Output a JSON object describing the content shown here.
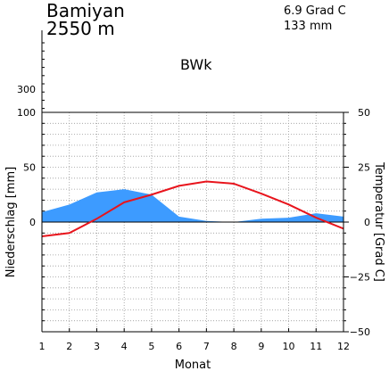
{
  "header": {
    "station": "Bamiyan",
    "altitude": "2550 m",
    "mean_temperature": "6.9 Grad C",
    "annual_precipitation": "133 mm",
    "climate_class": "BWk"
  },
  "colors": {
    "precipitation_fill": "#3d9bff",
    "temperature_line": "#e8141c",
    "grid": "#9a9a9a"
  },
  "chart_data": {
    "type": "area",
    "xlabel": "Monat",
    "ylabel_left": "Niederschlag [mm]",
    "ylabel_right": "Temperatur [Grad C]",
    "x": [
      1,
      2,
      3,
      4,
      5,
      6,
      7,
      8,
      9,
      10,
      11,
      12
    ],
    "x_ticks": [
      "1",
      "2",
      "3",
      "4",
      "5",
      "6",
      "7",
      "8",
      "9",
      "10",
      "11",
      "12"
    ],
    "y_left_ticks": [
      "100",
      "50",
      "0"
    ],
    "y_left_upper_tick": "300",
    "y_left_lim": [
      -100,
      100
    ],
    "y_right_ticks": [
      "50",
      "25",
      "0",
      "−25",
      "−50"
    ],
    "y_right_lim": [
      -50,
      50
    ],
    "grid": true,
    "series": [
      {
        "name": "Niederschlag",
        "axis": "left",
        "kind": "area",
        "values": [
          9,
          16,
          27,
          30,
          25,
          5,
          1,
          0,
          3,
          4,
          8,
          5
        ]
      },
      {
        "name": "Temperatur",
        "axis": "right",
        "kind": "line",
        "values": [
          -6.5,
          -5,
          1.5,
          9,
          12.5,
          16.5,
          18.5,
          17.5,
          13,
          8,
          2,
          -3
        ]
      }
    ]
  }
}
